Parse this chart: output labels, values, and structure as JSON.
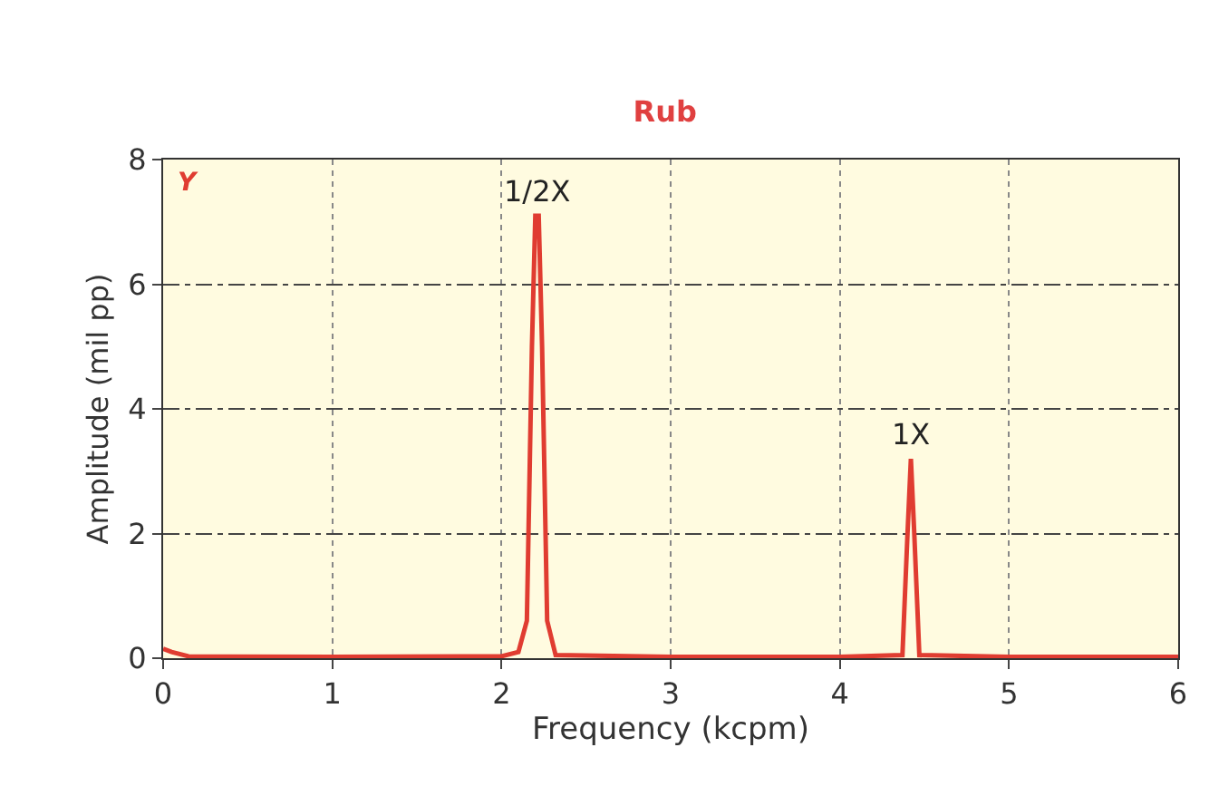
{
  "chart_data": {
    "type": "line",
    "title": "Rub",
    "xlabel": "Frequency (kcpm)",
    "ylabel": "Amplitude (mil pp)",
    "annotations": [
      "Y",
      {
        "text": "1/2X",
        "x": 2.21,
        "y": 7.1
      },
      {
        "text": "1X",
        "x": 4.42,
        "y": 3.2
      }
    ],
    "x": [
      0,
      0.05,
      0.15,
      1,
      2,
      2.1,
      2.15,
      2.18,
      2.2,
      2.22,
      2.24,
      2.27,
      2.32,
      3,
      4,
      4.37,
      4.4,
      4.42,
      4.44,
      4.47,
      5,
      6
    ],
    "series": [
      {
        "color": "#e03c31",
        "values": [
          0.15,
          0.1,
          0.03,
          0.02,
          0.03,
          0.1,
          0.6,
          5,
          7.1,
          7.1,
          5,
          0.6,
          0.05,
          0.02,
          0.02,
          0.05,
          2,
          3.2,
          2,
          0.05,
          0.02,
          0.02
        ]
      }
    ],
    "xlim": [
      0,
      6
    ],
    "xticks": [
      0,
      1,
      2,
      3,
      4,
      5,
      6
    ],
    "ylim": [
      0,
      8
    ],
    "yticks": [
      0,
      2,
      4,
      6,
      8
    ],
    "grid": true,
    "marker": "none",
    "line_style": "solid"
  }
}
